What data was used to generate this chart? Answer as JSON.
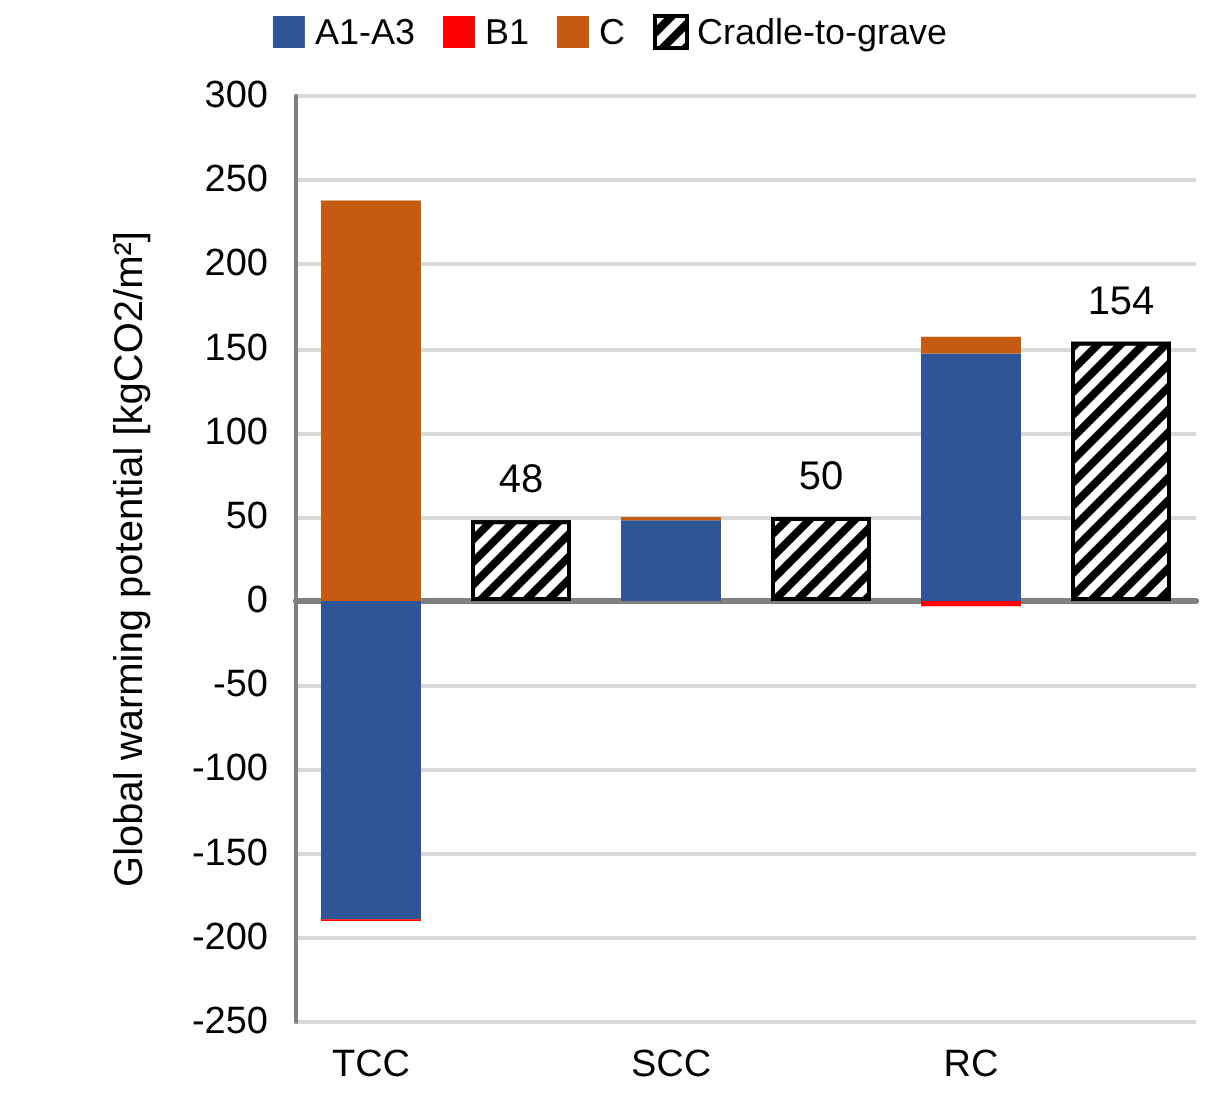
{
  "chart_data": {
    "type": "bar",
    "ylabel": "Global warming potential [kgCO2/m²]",
    "categories": [
      "TCC",
      null,
      "SCC",
      null,
      "RC",
      null
    ],
    "stacked": true,
    "ylim": [
      -250,
      300
    ],
    "yticks": [
      -250,
      -200,
      -150,
      -100,
      -50,
      0,
      50,
      100,
      150,
      200,
      250,
      300
    ],
    "grid": "y",
    "legend": "top",
    "series": [
      {
        "name": "A1-A3",
        "color": "#2f5597",
        "values": [
          -189,
          null,
          48,
          null,
          147,
          null
        ]
      },
      {
        "name": "B1",
        "color": "#ff0000",
        "values": [
          -1,
          null,
          0,
          null,
          -3,
          null
        ]
      },
      {
        "name": "C",
        "color": "#c55a11",
        "values": [
          238,
          null,
          2,
          null,
          10,
          null
        ]
      },
      {
        "name": "Cradle-to-grave",
        "color": "#000000",
        "values": [
          null,
          48,
          null,
          50,
          null,
          154
        ],
        "value_labels": [
          null,
          "48",
          null,
          "50",
          null,
          "154"
        ]
      }
    ]
  }
}
